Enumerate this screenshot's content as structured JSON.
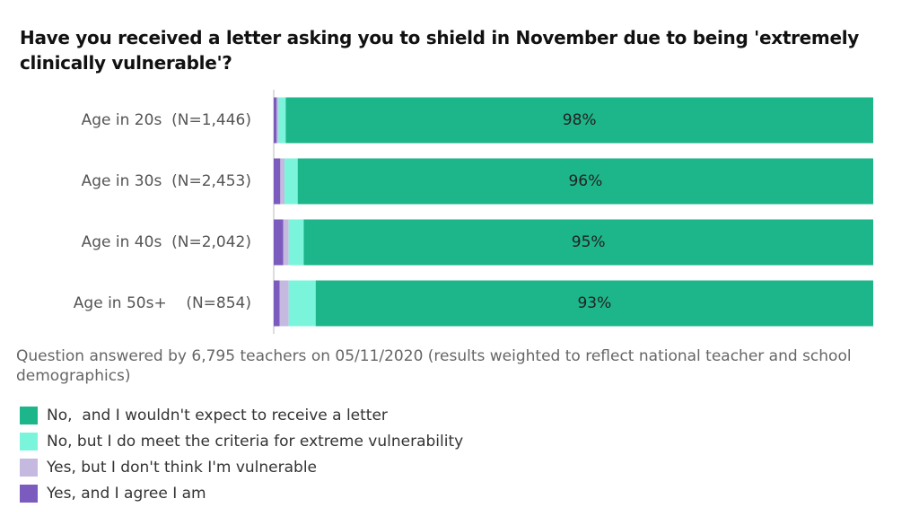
{
  "chart_data": {
    "type": "stacked-bar-horizontal",
    "title": "Have you received a letter asking you to shield in November due to being 'extremely clinically vulnerable'?",
    "categories": [
      "Age in 20s  (N=1,446)",
      "Age in 30s  (N=2,453)",
      "Age in 40s  (N=2,042)",
      "Age in 50s+    (N=854)"
    ],
    "series": [
      {
        "name": "No,  and I wouldn't expect to receive a letter",
        "color": "#1db58a",
        "values": [
          98,
          96,
          95,
          93
        ],
        "value_labels": [
          "98%",
          "96%",
          "95%",
          "93%"
        ]
      },
      {
        "name": "No, but I do meet the criteria for extreme vulnerability",
        "color": "#7af5dc",
        "values": [
          1.2,
          2.2,
          2.5,
          4.5
        ]
      },
      {
        "name": "Yes, but I don't think I'm vulnerable",
        "color": "#c5b9e0",
        "values": [
          0.3,
          0.7,
          0.9,
          1.5
        ]
      },
      {
        "name": "Yes, and I agree I am",
        "color": "#7b5bbd",
        "values": [
          0.5,
          1.1,
          1.6,
          1.0
        ]
      }
    ],
    "xlim": [
      0,
      100
    ],
    "note": "Question answered by 6,795 teachers on 05/11/2020 (results weighted to reflect national teacher and school demographics)"
  }
}
